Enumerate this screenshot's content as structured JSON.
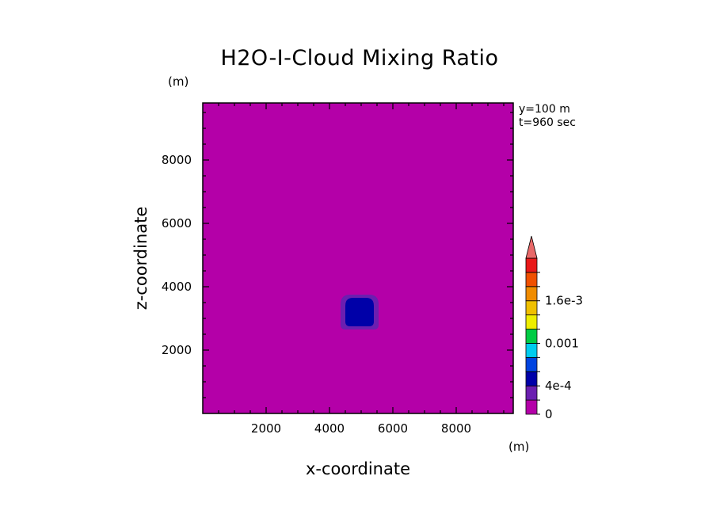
{
  "chart_data": {
    "type": "heatmap",
    "title": "H2O-I-Cloud Mixing Ratio",
    "xlabel": "x-coordinate",
    "ylabel": "z-coordinate",
    "x_unit": "(m)",
    "y_unit": "(m)",
    "annotations": [
      "y=100 m",
      "t=960 sec"
    ],
    "xlim": [
      0,
      9800
    ],
    "ylim": [
      0,
      9800
    ],
    "xticks": [
      2000,
      4000,
      6000,
      8000
    ],
    "yticks": [
      2000,
      4000,
      6000,
      8000
    ],
    "x_tick_labels": [
      "2000",
      "4000",
      "6000",
      "8000"
    ],
    "y_tick_labels": [
      "2000",
      "4000",
      "6000",
      "8000"
    ],
    "background_value": 0,
    "features": [
      {
        "shape": "cloud blob",
        "center_x": 4950,
        "center_z": 3200,
        "half_width": 600,
        "half_height": 550,
        "level": "2e-4",
        "color": "#6B1FB0"
      },
      {
        "shape": "cloud core",
        "center_x": 4950,
        "center_z": 3200,
        "half_width": 450,
        "half_height": 450,
        "level": "4e-4",
        "color": "#0000A8"
      }
    ],
    "colorbar": {
      "levels": [
        0,
        0.0002,
        0.0004,
        0.0006,
        0.0008,
        0.001,
        0.0012,
        0.0014,
        0.0016,
        0.0018,
        0.002
      ],
      "colors": [
        "#B400A8",
        "#6B1FB0",
        "#0000A8",
        "#0044E0",
        "#00CCEE",
        "#00CC44",
        "#EEEE00",
        "#F0C000",
        "#F08C00",
        "#F05000",
        "#E81818"
      ],
      "extend_color": "#E86868",
      "tick_labels": [
        {
          "level": 0,
          "label": "0"
        },
        {
          "level": 0.0004,
          "label": "4e-4"
        },
        {
          "level": 0.001,
          "label": "0.001"
        },
        {
          "level": 0.0016,
          "label": "1.6e-3"
        }
      ]
    },
    "grid": false,
    "legend": "colorbar-right"
  }
}
